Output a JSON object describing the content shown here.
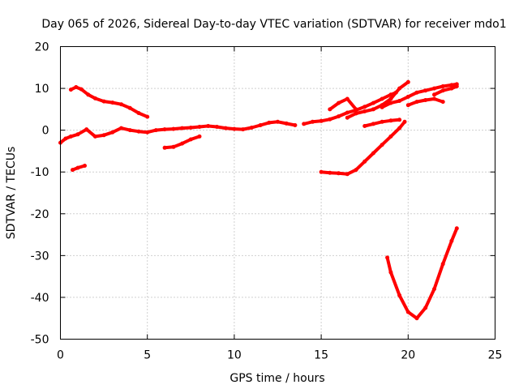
{
  "chart_data": {
    "type": "line",
    "title": "Day 065 of 2026, Sidereal Day-to-day VTEC variation (SDTVAR) for receiver mdo1",
    "xlabel": "GPS time / hours",
    "ylabel": "SDTVAR / TECUs",
    "xlim": [
      0,
      25
    ],
    "ylim": [
      -50,
      20
    ],
    "xticks": [
      0,
      5,
      10,
      15,
      20,
      25
    ],
    "yticks": [
      -50,
      -40,
      -30,
      -20,
      -10,
      0,
      10,
      20
    ],
    "grid": true,
    "legend": "none",
    "series_color": "#ff0000",
    "series": [
      {
        "x": [
          0.0,
          0.3,
          0.6,
          1.0,
          1.5,
          2.0,
          2.5,
          3.0,
          3.5,
          4.0,
          4.5,
          5.0,
          5.5,
          6.0,
          6.5,
          7.0,
          7.5,
          8.0,
          8.5,
          9.0,
          9.5,
          10.0,
          10.5,
          11.0,
          11.5,
          12.0,
          12.5,
          13.0,
          13.5
        ],
        "y": [
          -3.0,
          -2.0,
          -1.5,
          -1.0,
          0.2,
          -1.5,
          -1.2,
          -0.5,
          0.5,
          0.0,
          -0.3,
          -0.5,
          0.0,
          0.2,
          0.3,
          0.5,
          0.6,
          0.8,
          1.0,
          0.8,
          0.5,
          0.3,
          0.2,
          0.6,
          1.2,
          1.8,
          2.0,
          1.6,
          1.2
        ]
      },
      {
        "x": [
          0.6,
          0.9,
          1.2,
          1.6,
          2.0,
          2.5,
          3.0,
          3.5,
          4.0,
          4.5,
          5.0
        ],
        "y": [
          9.7,
          10.3,
          9.8,
          8.5,
          7.6,
          6.9,
          6.6,
          6.2,
          5.3,
          4.1,
          3.2
        ]
      },
      {
        "x": [
          0.7,
          1.0,
          1.4
        ],
        "y": [
          -9.5,
          -9.0,
          -8.5
        ]
      },
      {
        "x": [
          6.0,
          6.5,
          7.0,
          7.5,
          8.0
        ],
        "y": [
          -4.2,
          -4.0,
          -3.2,
          -2.2,
          -1.5
        ]
      },
      {
        "x": [
          14.0,
          14.5,
          15.0,
          15.5,
          16.0,
          16.5,
          17.0,
          17.5,
          18.0,
          18.5,
          19.0,
          19.3
        ],
        "y": [
          1.5,
          2.0,
          2.2,
          2.6,
          3.3,
          4.2,
          4.8,
          5.6,
          6.5,
          7.5,
          8.5,
          9.0
        ]
      },
      {
        "x": [
          15.5,
          16.0,
          16.5,
          17.0
        ],
        "y": [
          5.0,
          6.5,
          7.5,
          5.0
        ]
      },
      {
        "x": [
          16.5,
          17.0,
          17.5,
          18.0,
          18.5,
          19.0,
          19.5,
          20.0
        ],
        "y": [
          3.0,
          4.0,
          4.5,
          5.0,
          6.0,
          7.5,
          10.0,
          11.5
        ]
      },
      {
        "x": [
          18.5,
          19.0,
          19.5,
          20.0,
          20.5,
          21.0,
          21.5,
          22.0,
          22.5,
          22.8
        ],
        "y": [
          5.5,
          6.5,
          7.0,
          8.0,
          9.0,
          9.5,
          10.0,
          10.5,
          10.8,
          11.0
        ]
      },
      {
        "x": [
          20.0,
          20.5,
          21.0,
          21.5,
          22.0
        ],
        "y": [
          6.0,
          6.8,
          7.2,
          7.5,
          6.8
        ]
      },
      {
        "x": [
          21.5,
          22.0,
          22.5,
          22.8
        ],
        "y": [
          8.5,
          9.5,
          10.0,
          10.5
        ]
      },
      {
        "x": [
          17.5,
          18.0,
          18.5,
          19.0,
          19.5
        ],
        "y": [
          1.0,
          1.5,
          2.0,
          2.3,
          2.5
        ]
      },
      {
        "x": [
          15.0,
          15.5,
          16.0,
          16.5,
          17.0,
          17.5,
          18.0,
          18.5,
          19.0,
          19.5,
          19.8
        ],
        "y": [
          -10.0,
          -10.2,
          -10.3,
          -10.5,
          -9.5,
          -7.5,
          -5.5,
          -3.5,
          -1.5,
          0.5,
          2.0
        ]
      },
      {
        "x": [
          18.8,
          19.0,
          19.5,
          20.0,
          20.5,
          21.0,
          21.5,
          22.0,
          22.5,
          22.8
        ],
        "y": [
          -30.5,
          -34.0,
          -39.5,
          -43.5,
          -45.0,
          -42.5,
          -38.0,
          -32.0,
          -26.5,
          -23.5
        ]
      }
    ]
  }
}
